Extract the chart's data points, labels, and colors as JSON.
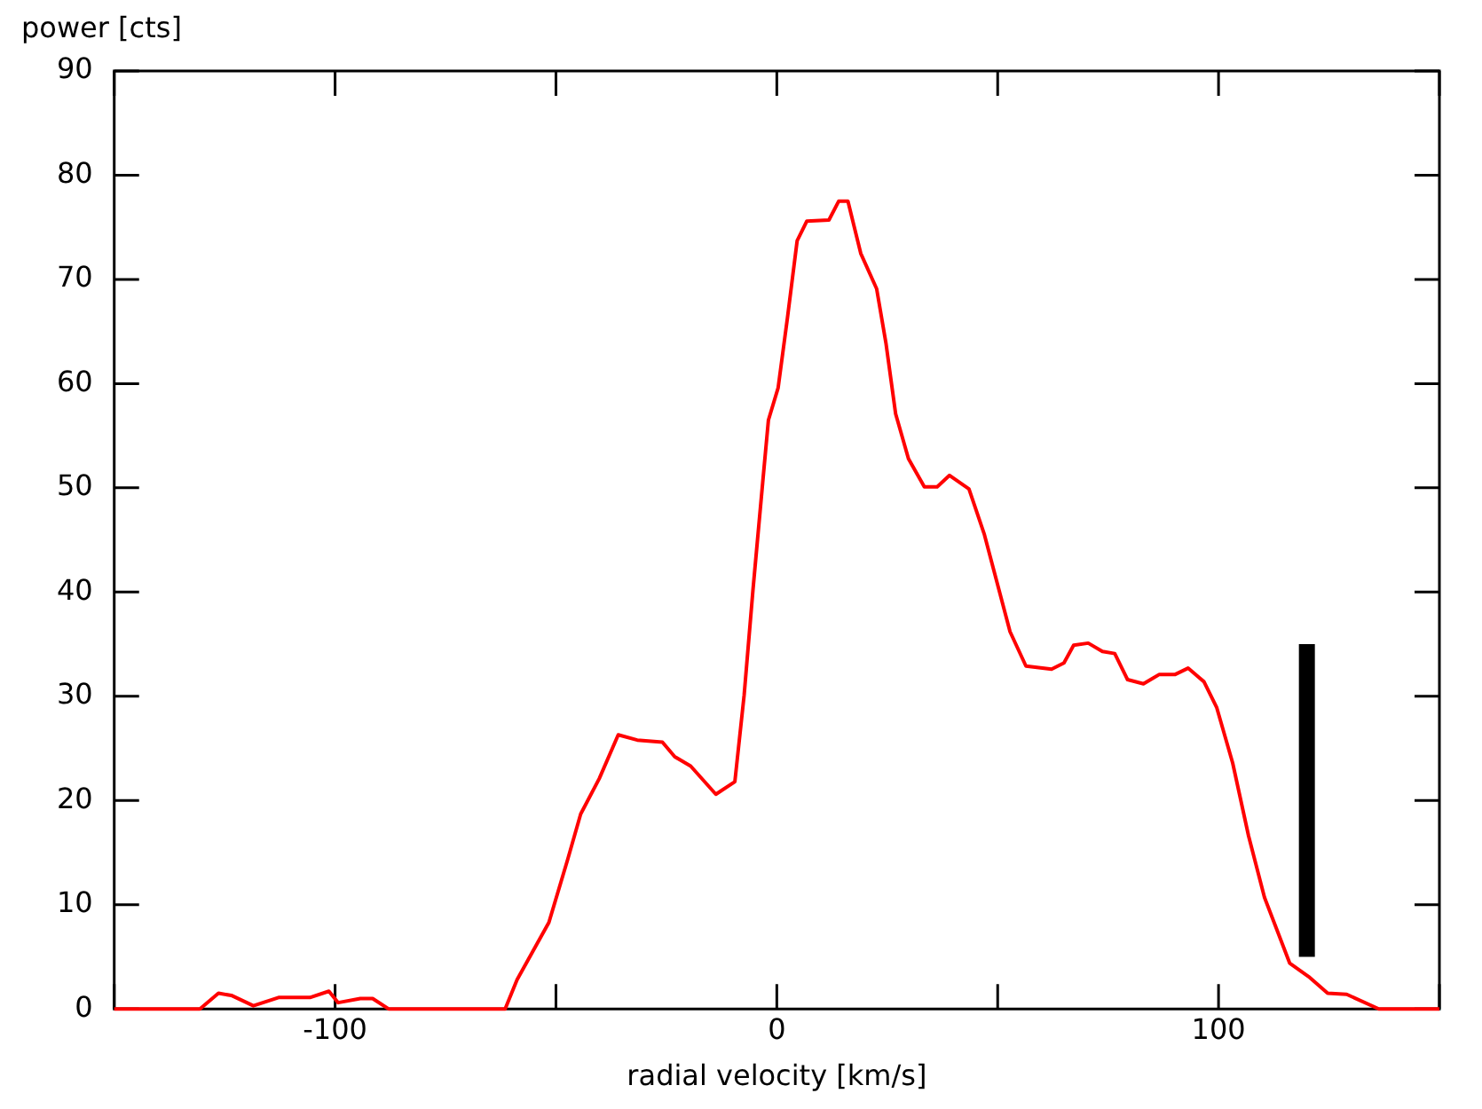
{
  "chart_data": {
    "type": "line",
    "xlabel": "radial velocity [km/s]",
    "ylabel": "power [cts]",
    "xlim": [
      -150,
      150
    ],
    "ylim": [
      0,
      90
    ],
    "xticks": [
      {
        "value": -150,
        "label": null
      },
      -100,
      {
        "value": -50,
        "label": null
      },
      0,
      {
        "value": 50,
        "label": null
      },
      100,
      {
        "value": 150,
        "label": null
      }
    ],
    "yticks": [
      0,
      10,
      20,
      30,
      40,
      50,
      60,
      70,
      80,
      90
    ],
    "grid": false,
    "legend": false,
    "marker": "none",
    "series": [
      {
        "color": "#ff0000",
        "x": [
          -150,
          -130.6,
          -126.4,
          -123.5,
          -118.5,
          -112.8,
          -105.7,
          -101.4,
          -99.3,
          -94.3,
          -91.5,
          -87.9,
          -61.5,
          -58.8,
          -51.6,
          -47.3,
          -44.4,
          -40.2,
          -35.9,
          -31.6,
          -25.9,
          -23.1,
          -19.5,
          -13.8,
          -9.5,
          -7.4,
          -5.4,
          -3.2,
          -1.9,
          0.3,
          2.4,
          4.6,
          6.8,
          11.8,
          14,
          16.1,
          19,
          22.6,
          24.7,
          26.9,
          29.8,
          33.4,
          36.3,
          39.1,
          43.5,
          47,
          52.8,
          56.4,
          62.2,
          65,
          67.2,
          70.5,
          73.7,
          76.5,
          79.4,
          83,
          86.6,
          90.2,
          93.1,
          96.7,
          99.6,
          103.2,
          106.8,
          110.4,
          116.1,
          120.4,
          124.7,
          129,
          136.3,
          150
        ],
        "values": [
          0,
          0,
          1.5,
          1.3,
          0.3,
          1.1,
          1.1,
          1.7,
          0.6,
          1,
          1,
          0,
          0,
          2.8,
          8.3,
          14.4,
          18.7,
          22.1,
          26.3,
          25.8,
          25.6,
          24.2,
          23.3,
          20.6,
          21.8,
          30.1,
          40.2,
          50.5,
          56.5,
          59.6,
          66.3,
          73.7,
          75.6,
          75.7,
          77.5,
          77.5,
          72.5,
          69.1,
          63.9,
          57.1,
          52.8,
          50.1,
          50.1,
          51.2,
          49.9,
          45.5,
          36.2,
          32.9,
          32.6,
          33.2,
          34.9,
          35.1,
          34.3,
          34.1,
          31.6,
          31.2,
          32.1,
          32.1,
          32.7,
          31.4,
          28.9,
          23.6,
          16.6,
          10.7,
          4.4,
          3.1,
          1.5,
          1.4,
          0,
          0
        ]
      },
      {
        "color": "#000000",
        "x": [
          120,
          120
        ],
        "values": [
          5,
          35
        ]
      }
    ]
  }
}
